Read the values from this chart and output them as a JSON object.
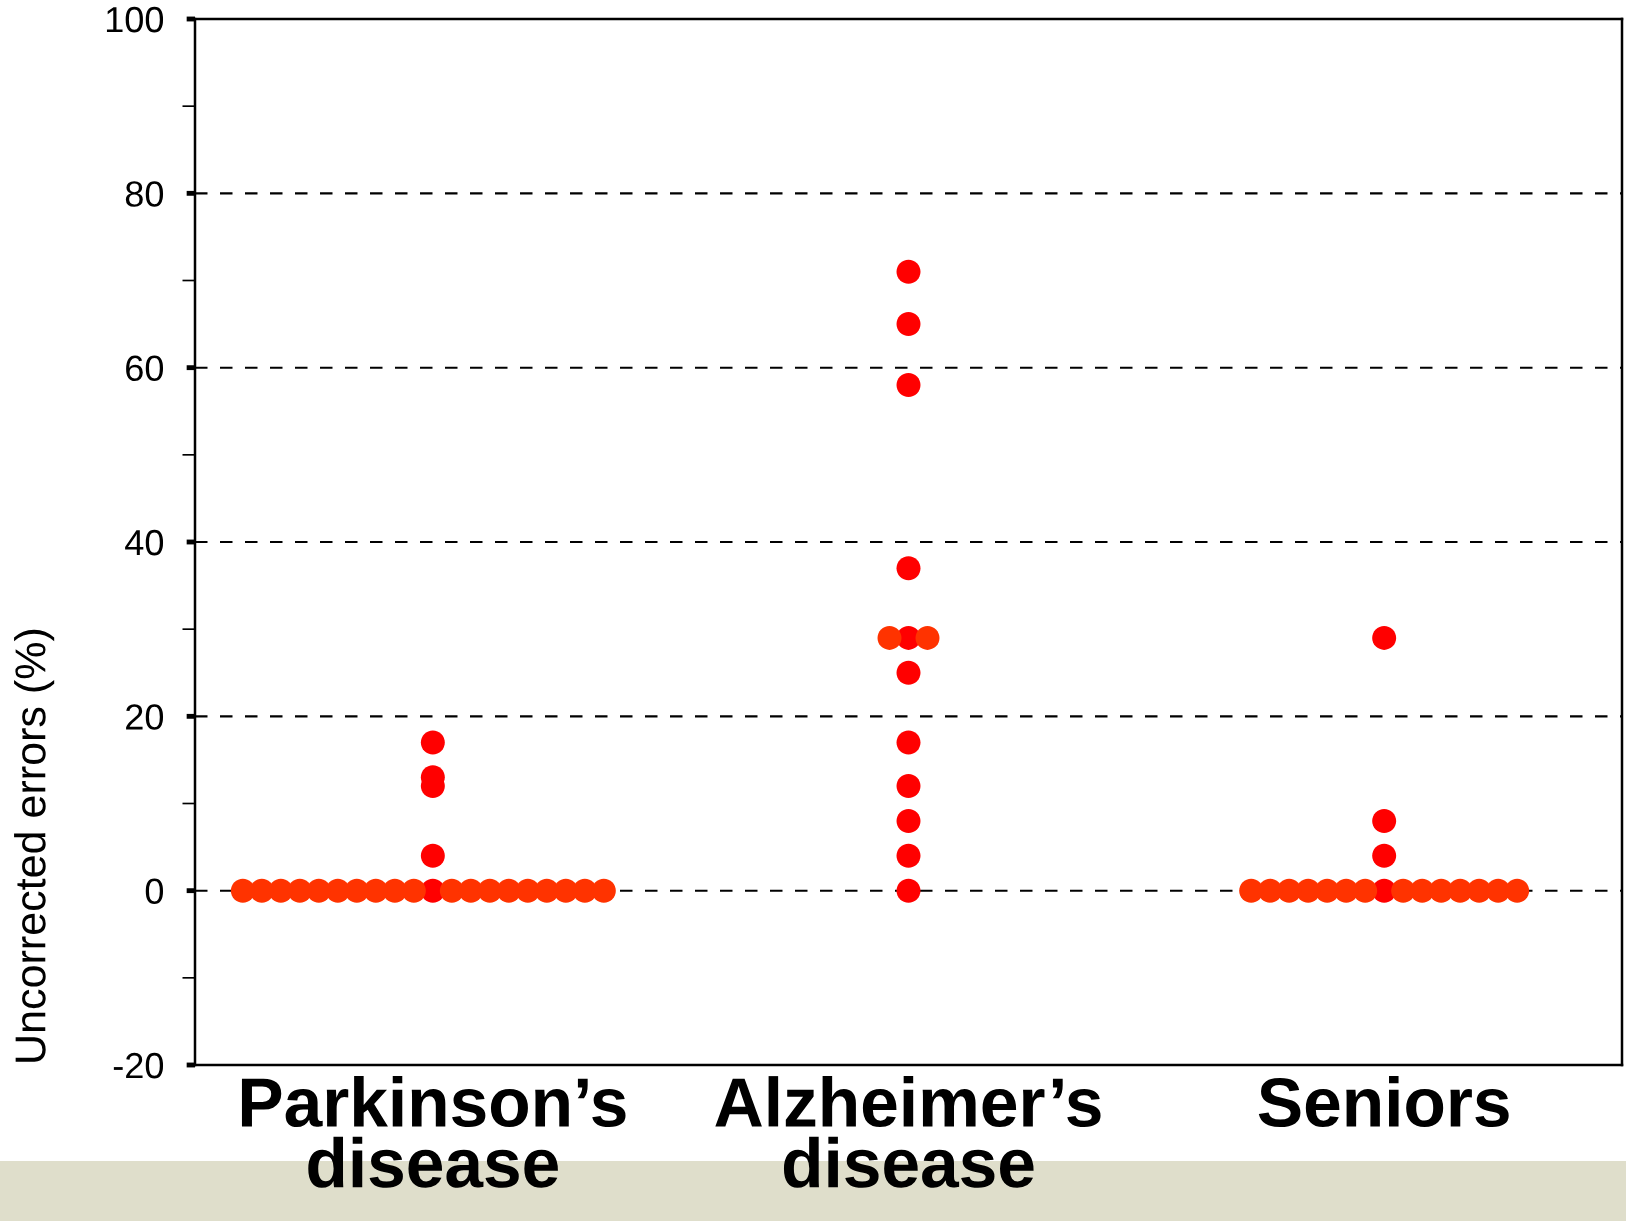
{
  "chart_data": {
    "type": "scatter",
    "ylabel": "Uncorrected errors (%)",
    "categories": [
      "Parkinson’s\ndisease",
      "Alzheimer’s\ndisease",
      "Seniors"
    ],
    "ylim": [
      -20,
      100
    ],
    "yticks": [
      -20,
      {
        "value": -10,
        "label": null
      },
      0,
      {
        "value": 10,
        "label": null
      },
      20,
      {
        "value": 30,
        "label": null
      },
      40,
      {
        "value": 50,
        "label": null
      },
      60,
      {
        "value": 70,
        "label": null
      },
      80,
      {
        "value": 90,
        "label": null
      },
      100
    ],
    "grid": "y",
    "marker": "circle",
    "series": [
      {
        "color": "#ff0000",
        "x": [
          "Parkinson’s\ndisease",
          "Parkinson’s\ndisease",
          "Parkinson’s\ndisease",
          "Parkinson’s\ndisease",
          "Parkinson’s\ndisease",
          "Alzheimer’s\ndisease",
          "Alzheimer’s\ndisease",
          "Alzheimer’s\ndisease",
          "Alzheimer’s\ndisease",
          "Alzheimer’s\ndisease",
          "Alzheimer’s\ndisease",
          "Alzheimer’s\ndisease",
          "Alzheimer’s\ndisease",
          "Alzheimer’s\ndisease",
          "Alzheimer’s\ndisease",
          "Alzheimer’s\ndisease",
          "Seniors",
          "Seniors",
          "Seniors",
          "Seniors"
        ],
        "values": [
          17,
          13,
          12,
          4,
          0,
          71,
          65,
          58,
          37,
          29,
          25,
          17,
          12,
          8,
          4,
          0,
          29,
          8,
          4,
          0
        ]
      },
      {
        "color": "#ff3300",
        "x": [
          "Parkinson’s\ndisease",
          "Parkinson’s\ndisease",
          "Parkinson’s\ndisease",
          "Parkinson’s\ndisease",
          "Parkinson’s\ndisease",
          "Parkinson’s\ndisease",
          "Parkinson’s\ndisease",
          "Parkinson’s\ndisease",
          "Parkinson’s\ndisease",
          "Parkinson’s\ndisease",
          "Parkinson’s\ndisease",
          "Parkinson’s\ndisease",
          "Parkinson’s\ndisease",
          "Parkinson’s\ndisease",
          "Parkinson’s\ndisease",
          "Parkinson’s\ndisease",
          "Parkinson’s\ndisease",
          "Parkinson’s\ndisease",
          "Parkinson’s\ndisease",
          "Alzheimer’s\ndisease",
          "Alzheimer’s\ndisease",
          "Seniors",
          "Seniors",
          "Seniors",
          "Seniors",
          "Seniors",
          "Seniors",
          "Seniors",
          "Seniors",
          "Seniors",
          "Seniors",
          "Seniors",
          "Seniors",
          "Seniors",
          "Seniors"
        ],
        "values": [
          0,
          0,
          0,
          0,
          0,
          0,
          0,
          0,
          0,
          0,
          0,
          0,
          0,
          0,
          0,
          0,
          0,
          0,
          0,
          29,
          29,
          0,
          0,
          0,
          0,
          0,
          0,
          0,
          0,
          0,
          0,
          0,
          0,
          0,
          0
        ]
      }
    ]
  }
}
